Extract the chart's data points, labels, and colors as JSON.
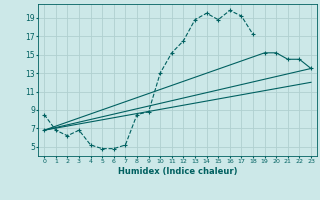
{
  "xlabel": "Humidex (Indice chaleur)",
  "bg_color": "#cce8e8",
  "line_color": "#006060",
  "grid_color": "#b0d0d0",
  "xlim": [
    -0.5,
    23.5
  ],
  "ylim": [
    4.0,
    20.5
  ],
  "xticks": [
    0,
    1,
    2,
    3,
    4,
    5,
    6,
    7,
    8,
    9,
    10,
    11,
    12,
    13,
    14,
    15,
    16,
    17,
    18,
    19,
    20,
    21,
    22,
    23
  ],
  "yticks": [
    5,
    7,
    9,
    11,
    13,
    15,
    17,
    19
  ],
  "line1_x": [
    0,
    1,
    2,
    3,
    4,
    5,
    6,
    7,
    8,
    9,
    10,
    11,
    12,
    13,
    14,
    15,
    16,
    17,
    18
  ],
  "line1_y": [
    8.5,
    6.8,
    6.2,
    6.8,
    5.2,
    4.8,
    4.8,
    5.2,
    8.5,
    8.8,
    13.0,
    15.2,
    16.5,
    18.8,
    19.5,
    18.8,
    19.8,
    19.2,
    17.2
  ],
  "line2_x": [
    0,
    19,
    20,
    21,
    22,
    23
  ],
  "line2_y": [
    6.8,
    15.2,
    15.2,
    14.5,
    14.5,
    13.5
  ],
  "line3_x": [
    0,
    23
  ],
  "line3_y": [
    6.8,
    13.5
  ],
  "line4_x": [
    0,
    23
  ],
  "line4_y": [
    6.8,
    12.0
  ]
}
